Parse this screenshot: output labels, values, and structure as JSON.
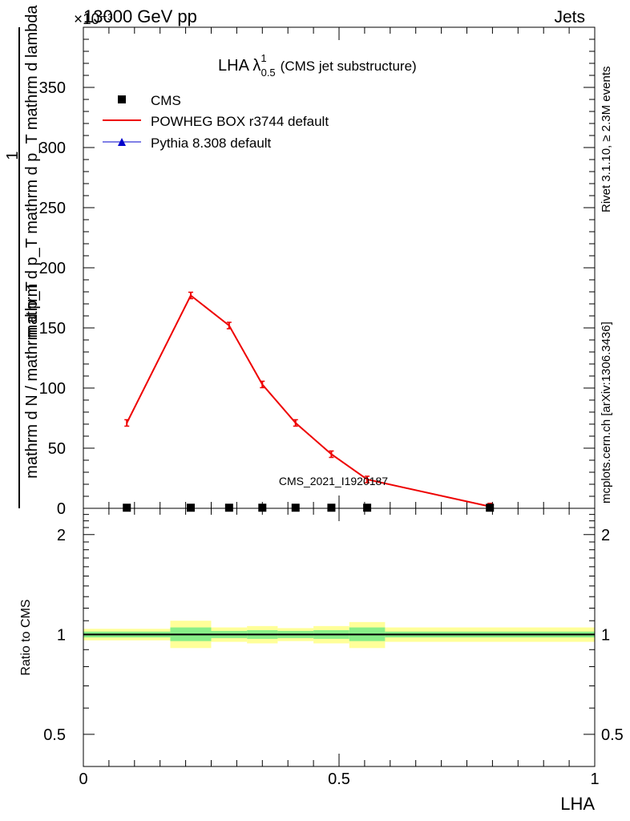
{
  "header": {
    "left": "13000 GeV pp",
    "right": "Jets",
    "multiplier": "×10⁻³"
  },
  "side_labels": {
    "rivet": "Rivet 3.1.10, ≥ 2.3M events",
    "source": "mcplots.cern.ch [arXiv:1306.3436]"
  },
  "watermark": "CMS_2021_I1920187",
  "plot_title": {
    "main": "LHA λ",
    "superscript": "1",
    "subscript": "0.5",
    "suffix": "(CMS jet substructure)"
  },
  "colors": {
    "cms": "#000000",
    "powheg": "#ee0000",
    "pythia": "#0000cc",
    "band_inner": "#88ee88",
    "band_outer": "#ffff99"
  },
  "chart_data": [
    {
      "type": "line",
      "title": "LHA λ^1_0.5 (CMS jet substructure)",
      "xlabel": "",
      "ylabel_numerator": "mathrm d²N",
      "ylabel_denominator": "mathrm d p_T mathrm d p_T mathrm d lambda",
      "ylabel_prefix_num": "1",
      "ylabel_prefix_den": "mathrm d N / mathrm d p_T",
      "xlim": [
        0,
        1
      ],
      "ylim": [
        0,
        400
      ],
      "yticks": [
        0,
        50,
        100,
        150,
        200,
        250,
        300,
        350
      ],
      "xticks": [
        0,
        0.5,
        1
      ],
      "legend_position": "top-left",
      "series": [
        {
          "name": "CMS",
          "marker": "square",
          "x": [
            0.085,
            0.21,
            0.285,
            0.35,
            0.415,
            0.485,
            0.555,
            0.795
          ],
          "y": [
            0.5,
            0.5,
            0.5,
            0.5,
            0.5,
            0.5,
            0.5,
            0.5
          ]
        },
        {
          "name": "POWHEG BOX r3744 default",
          "marker": "line",
          "x": [
            0.085,
            0.21,
            0.285,
            0.35,
            0.415,
            0.485,
            0.555,
            0.795
          ],
          "y": [
            71,
            177,
            152,
            103,
            71,
            45,
            24,
            1.5
          ]
        },
        {
          "name": "Pythia 8.308 default",
          "marker": "triangle",
          "x": [],
          "y": []
        }
      ]
    },
    {
      "type": "area",
      "ylabel": "Ratio to CMS",
      "xlabel": "LHA",
      "xlim": [
        0,
        1
      ],
      "ylim": [
        0.4,
        2.4
      ],
      "yscale": "log",
      "yticks": [
        0.5,
        1,
        2
      ],
      "xticks": [
        0,
        0.5,
        1
      ],
      "reference_line": 1,
      "bins": [
        {
          "x_low": 0.0,
          "x_high": 0.17,
          "inner": [
            0.98,
            1.02
          ],
          "outer": [
            0.96,
            1.04
          ]
        },
        {
          "x_low": 0.17,
          "x_high": 0.25,
          "inner": [
            0.955,
            1.05
          ],
          "outer": [
            0.91,
            1.1
          ]
        },
        {
          "x_low": 0.25,
          "x_high": 0.32,
          "inner": [
            0.975,
            1.025
          ],
          "outer": [
            0.95,
            1.05
          ]
        },
        {
          "x_low": 0.32,
          "x_high": 0.38,
          "inner": [
            0.97,
            1.03
          ],
          "outer": [
            0.94,
            1.06
          ]
        },
        {
          "x_low": 0.38,
          "x_high": 0.45,
          "inner": [
            0.975,
            1.025
          ],
          "outer": [
            0.955,
            1.045
          ]
        },
        {
          "x_low": 0.45,
          "x_high": 0.52,
          "inner": [
            0.97,
            1.03
          ],
          "outer": [
            0.94,
            1.06
          ]
        },
        {
          "x_low": 0.52,
          "x_high": 0.59,
          "inner": [
            0.955,
            1.05
          ],
          "outer": [
            0.91,
            1.09
          ]
        },
        {
          "x_low": 0.59,
          "x_high": 1.0,
          "inner": [
            0.98,
            1.02
          ],
          "outer": [
            0.95,
            1.05
          ]
        }
      ]
    }
  ]
}
